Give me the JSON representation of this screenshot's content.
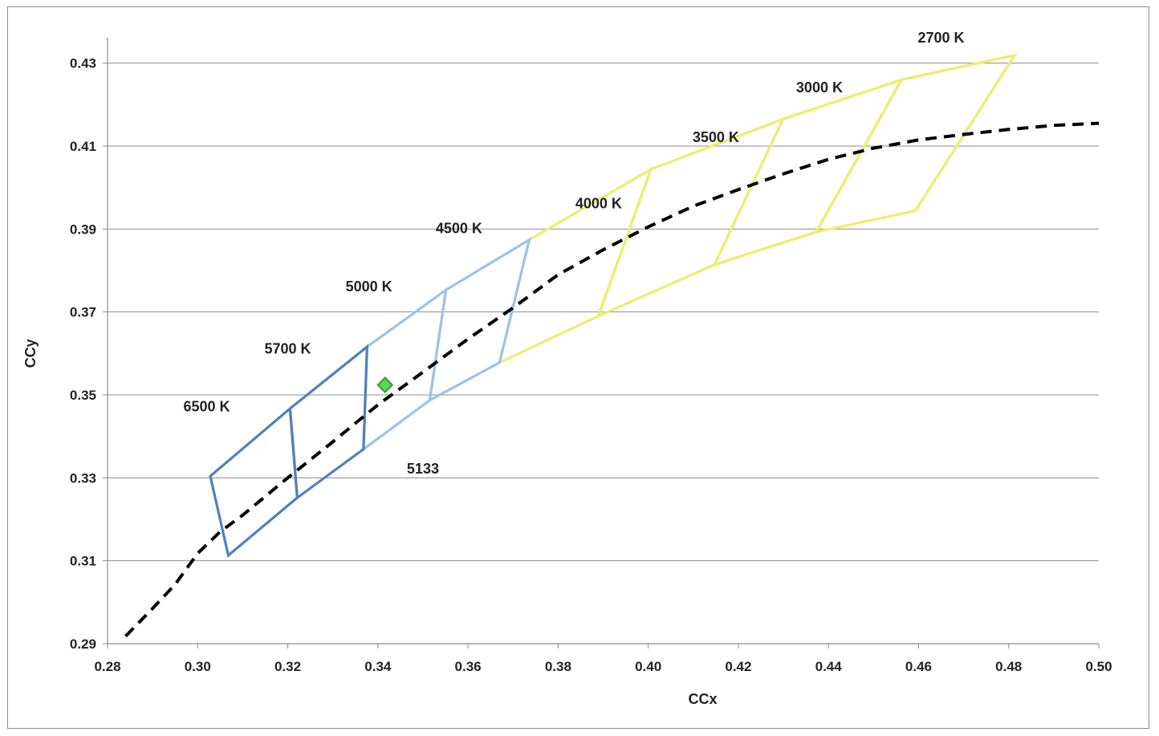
{
  "chart_data": {
    "type": "line",
    "title": "",
    "xlabel": "CCx",
    "ylabel": "CCy",
    "xlim": [
      0.28,
      0.5
    ],
    "ylim": [
      0.29,
      0.44
    ],
    "x_ticks": [
      "0.28",
      "0.30",
      "0.32",
      "0.34",
      "0.36",
      "0.38",
      "0.40",
      "0.42",
      "0.44",
      "0.46",
      "0.48",
      "0.50"
    ],
    "x_tick_values": [
      0.28,
      0.3,
      0.32,
      0.34,
      0.36,
      0.38,
      0.4,
      0.42,
      0.44,
      0.46,
      0.48,
      0.5
    ],
    "y_ticks": [
      "0.29",
      "0.31",
      "0.33",
      "0.35",
      "0.37",
      "0.39",
      "0.41",
      "0.43"
    ],
    "y_tick_values": [
      0.29,
      0.31,
      0.33,
      0.35,
      0.37,
      0.39,
      0.41,
      0.43
    ],
    "grid": "horizontal",
    "colors": {
      "dark_blue": "#4f81bd",
      "light_blue": "#9dc3e6",
      "yellow": "#eded6e",
      "locus": "#000000",
      "marker_fill": "#5bd75b",
      "marker_edge": "#2e9e2e",
      "grid": "#8c8c8c"
    },
    "planckian_locus": {
      "style": "dashed",
      "color": "#000000",
      "points": [
        [
          0.284,
          0.2918
        ],
        [
          0.29,
          0.2985
        ],
        [
          0.295,
          0.3043
        ],
        [
          0.3,
          0.3118
        ],
        [
          0.305,
          0.317
        ],
        [
          0.31,
          0.321
        ],
        [
          0.32,
          0.33
        ],
        [
          0.33,
          0.3387
        ],
        [
          0.34,
          0.3476
        ],
        [
          0.35,
          0.3555
        ],
        [
          0.36,
          0.3635
        ],
        [
          0.37,
          0.371
        ],
        [
          0.38,
          0.379
        ],
        [
          0.39,
          0.385
        ],
        [
          0.4,
          0.3905
        ],
        [
          0.41,
          0.3955
        ],
        [
          0.42,
          0.3995
        ],
        [
          0.43,
          0.4033
        ],
        [
          0.44,
          0.4068
        ],
        [
          0.45,
          0.4095
        ],
        [
          0.46,
          0.4115
        ],
        [
          0.47,
          0.4128
        ],
        [
          0.48,
          0.414
        ],
        [
          0.49,
          0.415
        ],
        [
          0.5,
          0.4155
        ]
      ]
    },
    "regions": [
      {
        "label": "6500 K",
        "color": "#4f81bd",
        "points": [
          [
            0.3028,
            0.3304
          ],
          [
            0.3205,
            0.3467
          ],
          [
            0.3221,
            0.3252
          ],
          [
            0.3068,
            0.3113
          ]
        ]
      },
      {
        "label": "5700 K",
        "color": "#4f81bd",
        "points": [
          [
            0.3205,
            0.3467
          ],
          [
            0.3376,
            0.3616
          ],
          [
            0.3368,
            0.3369
          ],
          [
            0.3221,
            0.3252
          ]
        ]
      },
      {
        "label": "5000 K",
        "color": "#9dc3e6",
        "points": [
          [
            0.3376,
            0.3616
          ],
          [
            0.3551,
            0.3753
          ],
          [
            0.3515,
            0.3487
          ],
          [
            0.3368,
            0.3369
          ]
        ]
      },
      {
        "label": "4500 K",
        "color": "#9dc3e6",
        "points": [
          [
            0.3551,
            0.3753
          ],
          [
            0.3736,
            0.3874
          ],
          [
            0.367,
            0.3578
          ],
          [
            0.3515,
            0.3487
          ]
        ]
      },
      {
        "label": "4000 K",
        "color": "#eded6e",
        "points": [
          [
            0.3736,
            0.3874
          ],
          [
            0.4006,
            0.4044
          ],
          [
            0.3889,
            0.369
          ],
          [
            0.367,
            0.3578
          ]
        ]
      },
      {
        "label": "3500 K",
        "color": "#eded6e",
        "points": [
          [
            0.4006,
            0.4044
          ],
          [
            0.4299,
            0.4165
          ],
          [
            0.4147,
            0.3814
          ],
          [
            0.3889,
            0.369
          ]
        ]
      },
      {
        "label": "3000 K",
        "color": "#eded6e",
        "points": [
          [
            0.4299,
            0.4165
          ],
          [
            0.4562,
            0.426
          ],
          [
            0.4373,
            0.3893
          ],
          [
            0.4147,
            0.3814
          ]
        ]
      },
      {
        "label": "2700 K",
        "color": "#eded6e",
        "points": [
          [
            0.4562,
            0.426
          ],
          [
            0.4813,
            0.4319
          ],
          [
            0.4593,
            0.3944
          ],
          [
            0.4373,
            0.3893
          ]
        ]
      }
    ],
    "region_labels": [
      {
        "text": "2700 K",
        "x": 0.465,
        "y": 0.435
      },
      {
        "text": "3000 K",
        "x": 0.438,
        "y": 0.423
      },
      {
        "text": "3500 K",
        "x": 0.415,
        "y": 0.411
      },
      {
        "text": "4000 K",
        "x": 0.389,
        "y": 0.395
      },
      {
        "text": "4500 K",
        "x": 0.358,
        "y": 0.389
      },
      {
        "text": "5000 K",
        "x": 0.338,
        "y": 0.375
      },
      {
        "text": "5700 K",
        "x": 0.32,
        "y": 0.36
      },
      {
        "text": "6500 K",
        "x": 0.302,
        "y": 0.346
      },
      {
        "text": "5133",
        "x": 0.35,
        "y": 0.331
      }
    ],
    "measured_point": {
      "x": 0.3416,
      "y": 0.3524,
      "marker": "diamond"
    }
  }
}
